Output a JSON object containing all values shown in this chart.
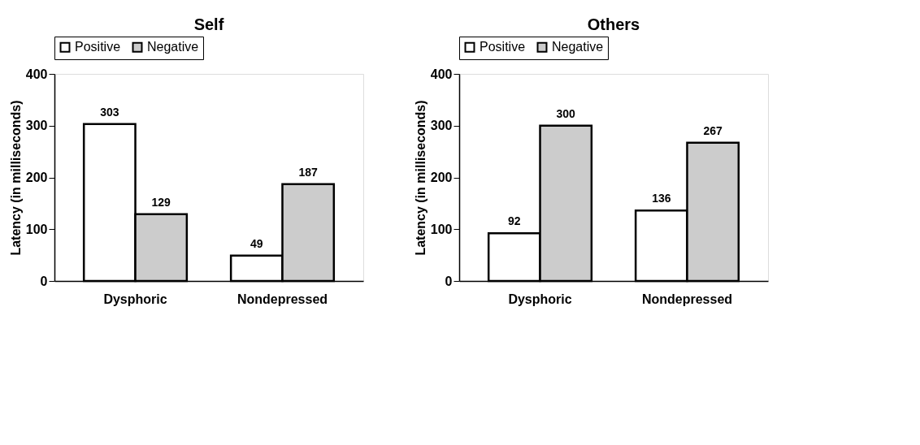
{
  "chart_data": [
    {
      "type": "bar",
      "title": "Self",
      "ylabel": "Latency (in milliseconds)",
      "categories": [
        "Dysphoric",
        "Nondepressed"
      ],
      "series": [
        {
          "name": "Positive",
          "color": "#ffffff",
          "values": [
            303,
            49
          ]
        },
        {
          "name": "Negative",
          "color": "#cccccc",
          "values": [
            129,
            187
          ]
        }
      ],
      "ylim": [
        0,
        400
      ],
      "yticks": [
        0,
        100,
        200,
        300,
        400
      ],
      "grid": false,
      "legend": "top",
      "data_labels": true
    },
    {
      "type": "bar",
      "title": "Others",
      "ylabel": "Latency (in milliseconds)",
      "categories": [
        "Dysphoric",
        "Nondepressed"
      ],
      "series": [
        {
          "name": "Positive",
          "color": "#ffffff",
          "values": [
            92,
            136
          ]
        },
        {
          "name": "Negative",
          "color": "#cccccc",
          "values": [
            300,
            267
          ]
        }
      ],
      "ylim": [
        0,
        400
      ],
      "yticks": [
        0,
        100,
        200,
        300,
        400
      ],
      "grid": false,
      "legend": "top",
      "data_labels": true
    }
  ]
}
